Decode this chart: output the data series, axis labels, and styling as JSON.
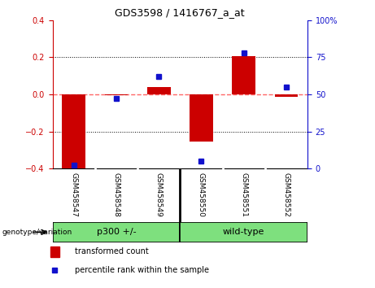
{
  "title": "GDS3598 / 1416767_a_at",
  "samples": [
    "GSM458547",
    "GSM458548",
    "GSM458549",
    "GSM458550",
    "GSM458551",
    "GSM458552"
  ],
  "red_values": [
    -0.405,
    -0.005,
    0.038,
    -0.255,
    0.205,
    -0.012
  ],
  "blue_values": [
    2,
    47,
    62,
    5,
    78,
    55
  ],
  "ylim_left": [
    -0.4,
    0.4
  ],
  "ylim_right": [
    0,
    100
  ],
  "yticks_left": [
    -0.4,
    -0.2,
    0.0,
    0.2,
    0.4
  ],
  "yticks_right": [
    0,
    25,
    50,
    75,
    100
  ],
  "groups": [
    {
      "label": "p300 +/-",
      "indices": [
        0,
        1,
        2
      ],
      "color": "#7EE07E"
    },
    {
      "label": "wild-type",
      "indices": [
        3,
        4,
        5
      ],
      "color": "#7EE07E"
    }
  ],
  "red_color": "#CC0000",
  "blue_color": "#1111CC",
  "hline_color": "#FF6666",
  "bar_width": 0.55,
  "blue_marker_size": 5,
  "genotype_label": "genotype/variation",
  "legend_red": "transformed count",
  "legend_blue": "percentile rank within the sample",
  "tick_label_color_left": "#CC0000",
  "tick_label_color_right": "#1111CC",
  "bg_plot": "#FFFFFF",
  "bg_outer": "#FFFFFF",
  "sample_bg": "#C8C8C8",
  "group_border_color": "#000000",
  "sample_divider_color": "#FFFFFF"
}
